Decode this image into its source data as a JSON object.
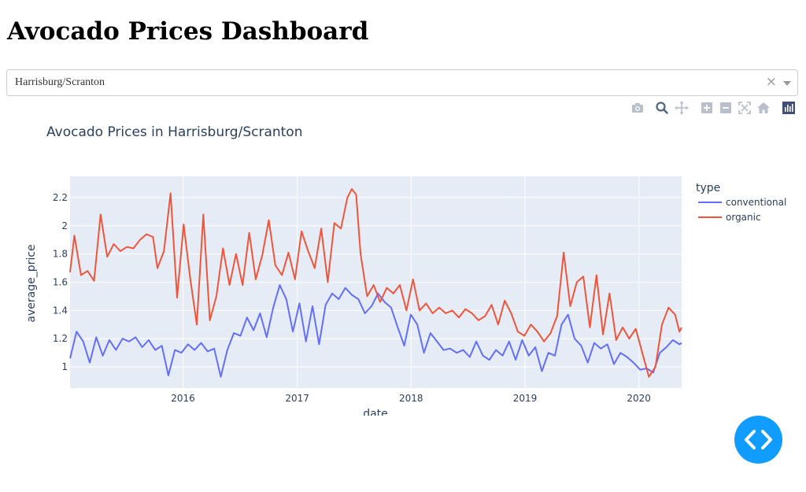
{
  "page": {
    "title": "Avocado Prices Dashboard"
  },
  "dropdown": {
    "value": "Harrisburg/Scranton",
    "clear_symbol": "×"
  },
  "modebar": {
    "icons": [
      "camera-icon",
      "zoom-icon",
      "pan-icon",
      "zoom-in-icon",
      "zoom-out-icon",
      "autoscale-icon",
      "reset-axes-icon",
      "plotly-logo-icon"
    ]
  },
  "colors": {
    "conventional": "#636efa",
    "organic": "#ef553b",
    "plot_bg": "#e5ecf6",
    "fab": "#119dff"
  },
  "fab": {
    "icon": "code-brackets-icon"
  },
  "chart_data": {
    "type": "line",
    "title": "Avocado Prices in Harrisburg/Scranton",
    "xlabel": "date",
    "ylabel": "average_price",
    "x_range": [
      "2015-01-04",
      "2020-05-17"
    ],
    "ylim": [
      0.85,
      2.35
    ],
    "x_ticks": [
      "2016",
      "2017",
      "2018",
      "2019",
      "2020"
    ],
    "y_ticks": [
      "1",
      "1.2",
      "1.4",
      "1.6",
      "1.8",
      "2",
      "2.2"
    ],
    "legend": {
      "title": "type",
      "position": "right"
    },
    "grid": true,
    "series": [
      {
        "name": "conventional",
        "points": [
          [
            "2015-01-04",
            1.06
          ],
          [
            "2015-01-25",
            1.25
          ],
          [
            "2015-02-15",
            1.18
          ],
          [
            "2015-03-08",
            1.03
          ],
          [
            "2015-03-29",
            1.21
          ],
          [
            "2015-04-19",
            1.08
          ],
          [
            "2015-05-10",
            1.19
          ],
          [
            "2015-05-31",
            1.12
          ],
          [
            "2015-06-21",
            1.2
          ],
          [
            "2015-07-12",
            1.18
          ],
          [
            "2015-08-02",
            1.21
          ],
          [
            "2015-08-23",
            1.14
          ],
          [
            "2015-09-13",
            1.19
          ],
          [
            "2015-10-04",
            1.12
          ],
          [
            "2015-10-25",
            1.15
          ],
          [
            "2015-11-15",
            0.94
          ],
          [
            "2015-12-06",
            1.12
          ],
          [
            "2015-12-27",
            1.1
          ],
          [
            "2016-01-17",
            1.16
          ],
          [
            "2016-02-07",
            1.12
          ],
          [
            "2016-02-28",
            1.17
          ],
          [
            "2016-03-20",
            1.11
          ],
          [
            "2016-04-10",
            1.13
          ],
          [
            "2016-05-01",
            0.93
          ],
          [
            "2016-05-22",
            1.12
          ],
          [
            "2016-06-12",
            1.24
          ],
          [
            "2016-07-03",
            1.22
          ],
          [
            "2016-07-24",
            1.35
          ],
          [
            "2016-08-14",
            1.26
          ],
          [
            "2016-09-04",
            1.38
          ],
          [
            "2016-09-25",
            1.21
          ],
          [
            "2016-10-16",
            1.42
          ],
          [
            "2016-11-06",
            1.58
          ],
          [
            "2016-11-27",
            1.48
          ],
          [
            "2016-12-18",
            1.25
          ],
          [
            "2017-01-08",
            1.45
          ],
          [
            "2017-01-29",
            1.18
          ],
          [
            "2017-02-19",
            1.43
          ],
          [
            "2017-03-12",
            1.16
          ],
          [
            "2017-04-02",
            1.44
          ],
          [
            "2017-04-23",
            1.52
          ],
          [
            "2017-05-14",
            1.48
          ],
          [
            "2017-06-04",
            1.56
          ],
          [
            "2017-06-25",
            1.51
          ],
          [
            "2017-07-16",
            1.48
          ],
          [
            "2017-08-06",
            1.38
          ],
          [
            "2017-08-27",
            1.43
          ],
          [
            "2017-09-17",
            1.52
          ],
          [
            "2017-10-08",
            1.46
          ],
          [
            "2017-10-29",
            1.42
          ],
          [
            "2017-11-19",
            1.28
          ],
          [
            "2017-12-10",
            1.15
          ],
          [
            "2017-12-31",
            1.37
          ],
          [
            "2018-01-21",
            1.3
          ],
          [
            "2018-02-11",
            1.1
          ],
          [
            "2018-03-04",
            1.24
          ],
          [
            "2018-03-25",
            1.18
          ],
          [
            "2018-04-15",
            1.12
          ],
          [
            "2018-05-06",
            1.13
          ],
          [
            "2018-05-27",
            1.1
          ],
          [
            "2018-06-17",
            1.12
          ],
          [
            "2018-07-08",
            1.07
          ],
          [
            "2018-07-29",
            1.18
          ],
          [
            "2018-08-19",
            1.08
          ],
          [
            "2018-09-09",
            1.05
          ],
          [
            "2018-09-30",
            1.12
          ],
          [
            "2018-10-21",
            1.08
          ],
          [
            "2018-11-11",
            1.18
          ],
          [
            "2018-12-02",
            1.05
          ],
          [
            "2018-12-23",
            1.19
          ],
          [
            "2019-01-13",
            1.08
          ],
          [
            "2019-02-03",
            1.14
          ],
          [
            "2019-02-24",
            0.97
          ],
          [
            "2019-03-17",
            1.1
          ],
          [
            "2019-04-07",
            1.08
          ],
          [
            "2019-04-28",
            1.3
          ],
          [
            "2019-05-19",
            1.37
          ],
          [
            "2019-06-09",
            1.2
          ],
          [
            "2019-06-30",
            1.15
          ],
          [
            "2019-07-21",
            1.03
          ],
          [
            "2019-08-11",
            1.17
          ],
          [
            "2019-09-01",
            1.13
          ],
          [
            "2019-09-22",
            1.16
          ],
          [
            "2019-10-13",
            1.02
          ],
          [
            "2019-11-03",
            1.1
          ],
          [
            "2019-11-24",
            1.07
          ],
          [
            "2019-12-15",
            1.03
          ],
          [
            "2020-01-05",
            0.98
          ],
          [
            "2020-01-26",
            0.99
          ],
          [
            "2020-02-16",
            0.96
          ],
          [
            "2020-03-08",
            1.1
          ],
          [
            "2020-03-29",
            1.14
          ],
          [
            "2020-04-19",
            1.19
          ],
          [
            "2020-05-10",
            1.16
          ],
          [
            "2020-05-17",
            1.17
          ]
        ]
      },
      {
        "name": "organic",
        "points": [
          [
            "2015-01-04",
            1.67
          ],
          [
            "2015-01-18",
            1.93
          ],
          [
            "2015-02-08",
            1.65
          ],
          [
            "2015-03-01",
            1.68
          ],
          [
            "2015-03-22",
            1.61
          ],
          [
            "2015-04-12",
            2.08
          ],
          [
            "2015-05-03",
            1.78
          ],
          [
            "2015-05-24",
            1.87
          ],
          [
            "2015-06-14",
            1.82
          ],
          [
            "2015-07-05",
            1.85
          ],
          [
            "2015-07-26",
            1.84
          ],
          [
            "2015-08-16",
            1.9
          ],
          [
            "2015-09-06",
            1.94
          ],
          [
            "2015-09-27",
            1.92
          ],
          [
            "2015-10-11",
            1.7
          ],
          [
            "2015-11-01",
            1.82
          ],
          [
            "2015-11-22",
            2.23
          ],
          [
            "2015-12-13",
            1.49
          ],
          [
            "2016-01-03",
            2.01
          ],
          [
            "2016-01-24",
            1.63
          ],
          [
            "2016-02-14",
            1.3
          ],
          [
            "2016-03-06",
            2.08
          ],
          [
            "2016-03-27",
            1.33
          ],
          [
            "2016-04-17",
            1.5
          ],
          [
            "2016-05-08",
            1.84
          ],
          [
            "2016-05-29",
            1.58
          ],
          [
            "2016-06-19",
            1.8
          ],
          [
            "2016-07-10",
            1.58
          ],
          [
            "2016-07-31",
            1.95
          ],
          [
            "2016-08-21",
            1.62
          ],
          [
            "2016-09-11",
            1.79
          ],
          [
            "2016-10-02",
            2.04
          ],
          [
            "2016-10-23",
            1.72
          ],
          [
            "2016-11-13",
            1.65
          ],
          [
            "2016-12-04",
            1.81
          ],
          [
            "2016-12-25",
            1.62
          ],
          [
            "2017-01-15",
            1.96
          ],
          [
            "2017-02-05",
            1.82
          ],
          [
            "2017-02-26",
            1.7
          ],
          [
            "2017-03-19",
            1.98
          ],
          [
            "2017-04-09",
            1.6
          ],
          [
            "2017-04-30",
            2.02
          ],
          [
            "2017-05-21",
            1.98
          ],
          [
            "2017-06-11",
            2.2
          ],
          [
            "2017-06-25",
            2.26
          ],
          [
            "2017-07-09",
            2.22
          ],
          [
            "2017-07-23",
            1.8
          ],
          [
            "2017-08-13",
            1.5
          ],
          [
            "2017-09-03",
            1.58
          ],
          [
            "2017-09-24",
            1.46
          ],
          [
            "2017-10-15",
            1.56
          ],
          [
            "2017-11-05",
            1.52
          ],
          [
            "2017-11-26",
            1.58
          ],
          [
            "2017-12-17",
            1.4
          ],
          [
            "2018-01-07",
            1.62
          ],
          [
            "2018-01-28",
            1.4
          ],
          [
            "2018-02-18",
            1.45
          ],
          [
            "2018-03-11",
            1.38
          ],
          [
            "2018-04-01",
            1.42
          ],
          [
            "2018-04-22",
            1.38
          ],
          [
            "2018-05-13",
            1.4
          ],
          [
            "2018-06-03",
            1.35
          ],
          [
            "2018-06-24",
            1.41
          ],
          [
            "2018-07-15",
            1.38
          ],
          [
            "2018-08-05",
            1.33
          ],
          [
            "2018-08-26",
            1.36
          ],
          [
            "2018-09-16",
            1.44
          ],
          [
            "2018-10-07",
            1.3
          ],
          [
            "2018-10-28",
            1.47
          ],
          [
            "2018-11-18",
            1.38
          ],
          [
            "2018-12-09",
            1.25
          ],
          [
            "2018-12-30",
            1.22
          ],
          [
            "2019-01-20",
            1.3
          ],
          [
            "2019-02-10",
            1.25
          ],
          [
            "2019-03-03",
            1.18
          ],
          [
            "2019-03-24",
            1.24
          ],
          [
            "2019-04-14",
            1.36
          ],
          [
            "2019-05-05",
            1.81
          ],
          [
            "2019-05-26",
            1.43
          ],
          [
            "2019-06-16",
            1.6
          ],
          [
            "2019-07-07",
            1.64
          ],
          [
            "2019-07-28",
            1.28
          ],
          [
            "2019-08-18",
            1.65
          ],
          [
            "2019-09-08",
            1.23
          ],
          [
            "2019-09-29",
            1.52
          ],
          [
            "2019-10-20",
            1.19
          ],
          [
            "2019-11-10",
            1.28
          ],
          [
            "2019-12-01",
            1.2
          ],
          [
            "2019-12-22",
            1.27
          ],
          [
            "2020-01-12",
            1.1
          ],
          [
            "2020-02-02",
            0.93
          ],
          [
            "2020-02-23",
            1.0
          ],
          [
            "2020-03-15",
            1.3
          ],
          [
            "2020-04-05",
            1.42
          ],
          [
            "2020-04-26",
            1.37
          ],
          [
            "2020-05-10",
            1.25
          ],
          [
            "2020-05-17",
            1.28
          ]
        ]
      }
    ]
  }
}
